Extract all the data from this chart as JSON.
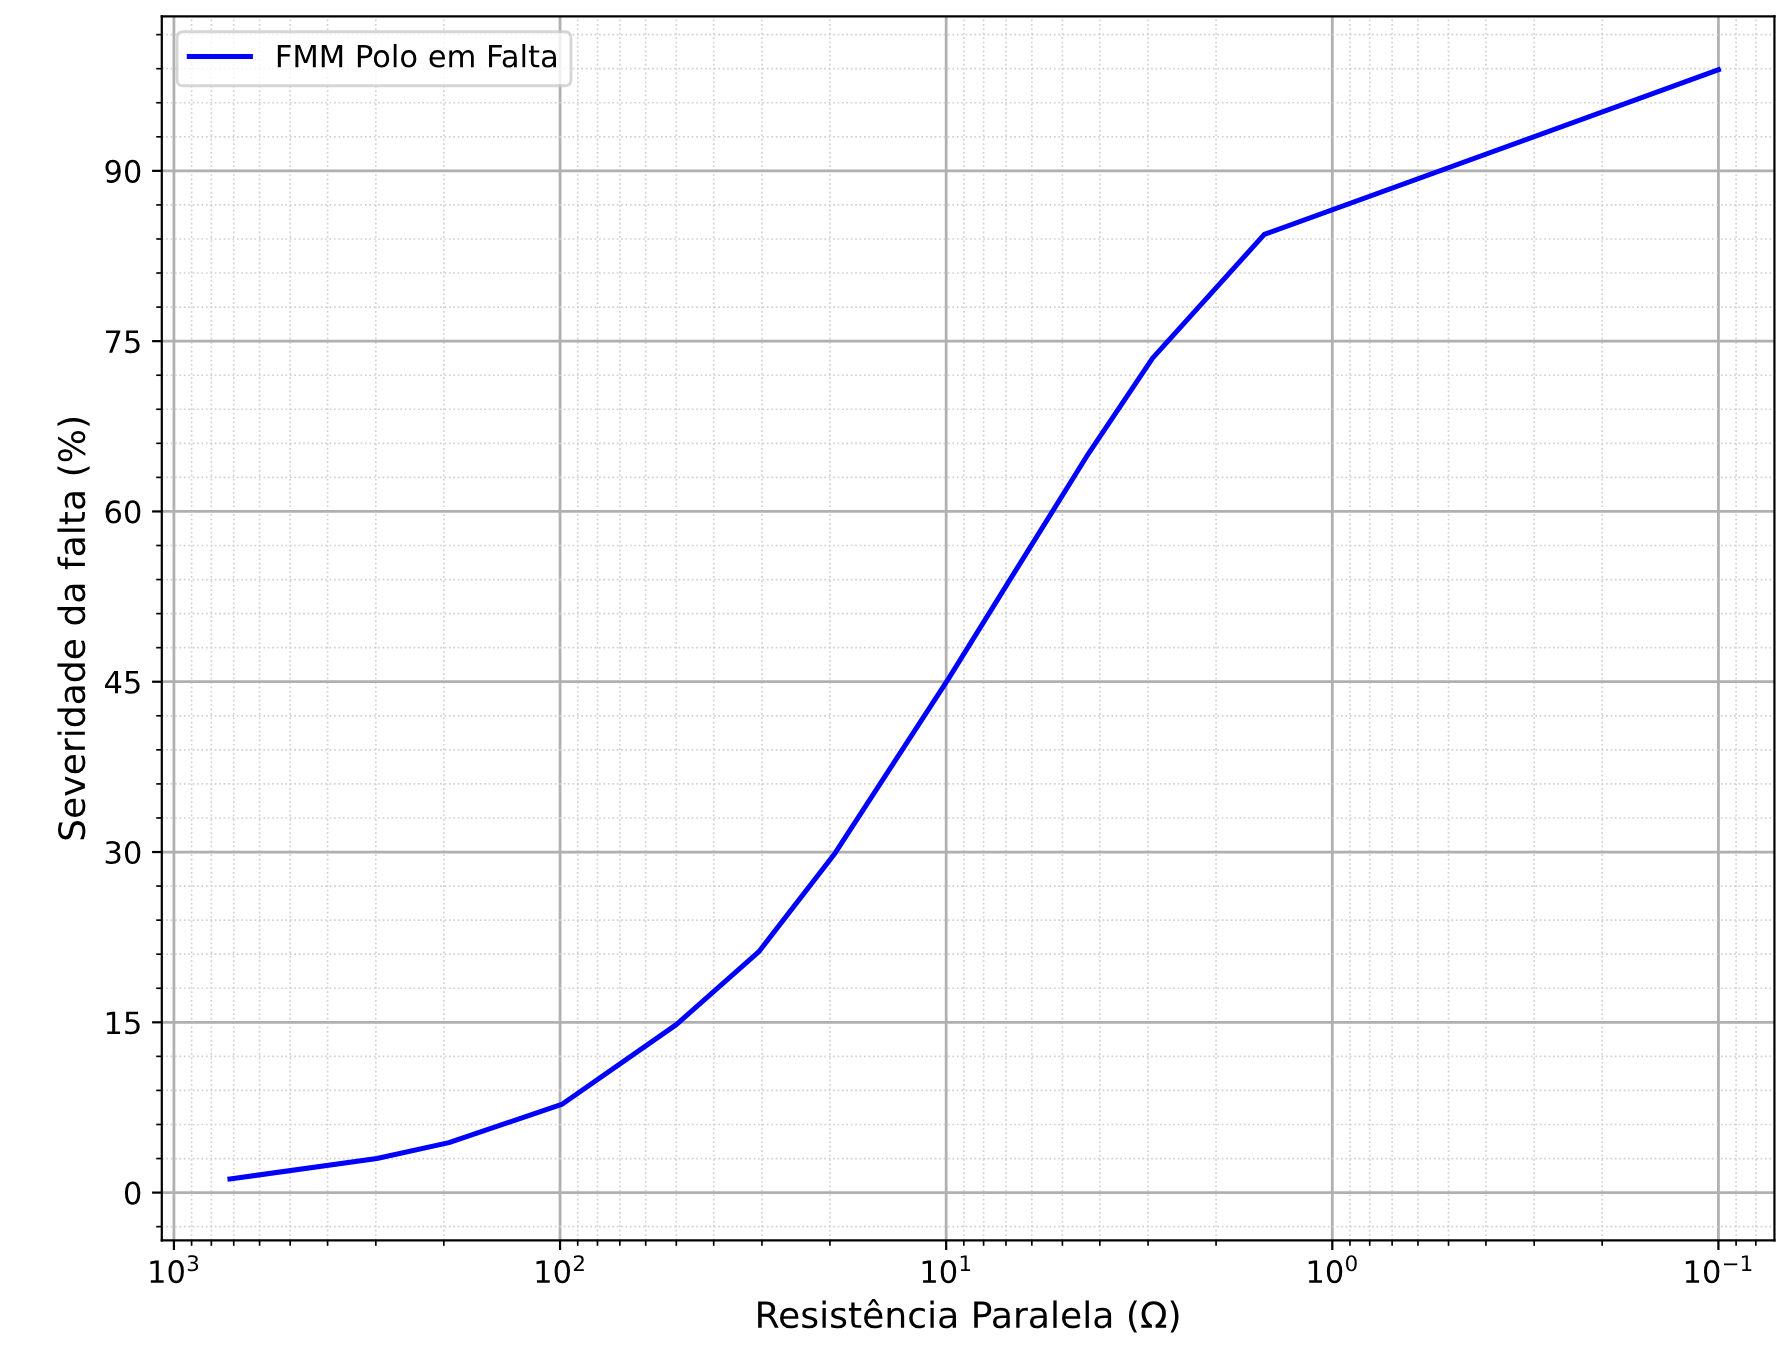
{
  "chart_data": {
    "type": "line",
    "xlabel": "Resistência Paralela (Ω)",
    "ylabel": "Severidade da falta (%)",
    "x": [
      716,
      298,
      194,
      98.6,
      50,
      30.6,
      19.4,
      9.85,
      7.4,
      4.28,
      2.92,
      1.5,
      0.1
    ],
    "series": [
      {
        "name": "FMM Polo em Falta",
        "color": "#0000ff",
        "values": [
          1.2,
          3.0,
          4.4,
          7.8,
          14.8,
          21.2,
          29.9,
          45.3,
          52.1,
          65.1,
          73.5,
          84.4,
          98.9
        ]
      }
    ],
    "log": "x",
    "xlim": [
      1075,
      0.0716
    ],
    "ylim": [
      -4.2,
      103.6
    ],
    "xticks": [
      {
        "value": 1000,
        "label": "10$^{3}$"
      },
      {
        "value": 100,
        "label": "10$^{2}$"
      },
      {
        "value": 10,
        "label": "10$^{1}$"
      },
      {
        "value": 1,
        "label": "10$^{0}$"
      },
      {
        "value": 0.1,
        "label": "10$^{−1}$"
      }
    ],
    "yticks": [
      0,
      15,
      30,
      45,
      60,
      75,
      90
    ],
    "grid": true,
    "legend": "top left",
    "marker": "none",
    "line_style": "solid"
  }
}
